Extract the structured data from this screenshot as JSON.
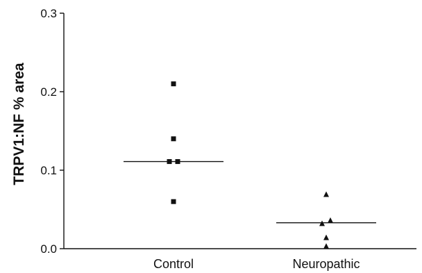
{
  "chart_data": {
    "type": "scatter",
    "title": "",
    "xlabel": "",
    "ylabel": "TRPV1:NF % area",
    "categories": [
      "Control",
      "Neuropathic"
    ],
    "ylim": [
      0,
      0.3
    ],
    "yticks": [
      "0.0",
      "0.1",
      "0.2",
      "0.3"
    ],
    "ytick_values": [
      0,
      0.1,
      0.2,
      0.3
    ],
    "grid": false,
    "legend": "none",
    "series": [
      {
        "category": "Control",
        "marker": "square",
        "points": [
          {
            "offset": 0,
            "value": 0.21
          },
          {
            "offset": 0,
            "value": 0.14
          },
          {
            "offset": -1,
            "value": 0.111
          },
          {
            "offset": 1,
            "value": 0.111
          },
          {
            "offset": 0,
            "value": 0.06
          }
        ],
        "median": 0.111
      },
      {
        "category": "Neuropathic",
        "marker": "triangle",
        "points": [
          {
            "offset": 0,
            "value": 0.069
          },
          {
            "offset": 1,
            "value": 0.036
          },
          {
            "offset": -1,
            "value": 0.032
          },
          {
            "offset": 0,
            "value": 0.014
          },
          {
            "offset": 0,
            "value": 0.003
          }
        ],
        "median": 0.033
      }
    ],
    "colors": {
      "marker": "#111111",
      "axis": "#111111"
    }
  }
}
